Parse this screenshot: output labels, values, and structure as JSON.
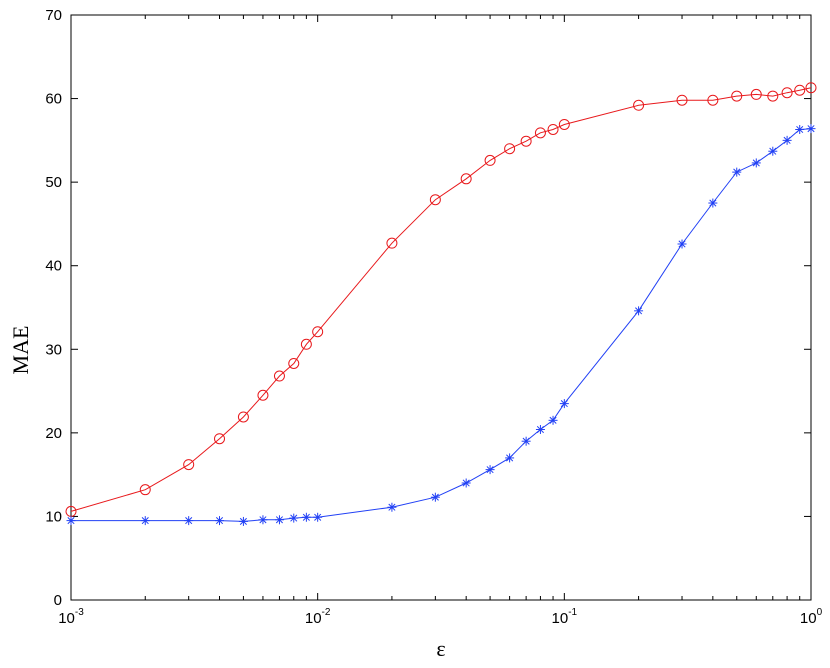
{
  "chart_data": {
    "type": "line",
    "xscale": "log",
    "xlabel": "ε",
    "ylabel": "MAE",
    "xlim": [
      0.001,
      1
    ],
    "ylim": [
      0,
      70
    ],
    "grid": false,
    "x_ticks": [
      {
        "value": 0.001,
        "base": "10",
        "exp": "-3"
      },
      {
        "value": 0.01,
        "base": "10",
        "exp": "-2"
      },
      {
        "value": 0.1,
        "base": "10",
        "exp": "-1"
      },
      {
        "value": 1,
        "base": "10",
        "exp": "0"
      }
    ],
    "y_ticks": [
      0,
      10,
      20,
      30,
      40,
      50,
      60,
      70
    ],
    "series": [
      {
        "color": "#e8191c",
        "marker": "circle",
        "x": [
          0.001,
          0.002,
          0.003,
          0.004,
          0.005,
          0.006,
          0.007,
          0.008,
          0.009,
          0.01,
          0.02,
          0.03,
          0.04,
          0.05,
          0.06,
          0.07,
          0.08,
          0.09,
          0.1,
          0.2,
          0.3,
          0.4,
          0.5,
          0.6,
          0.7,
          0.8,
          0.9,
          1.0
        ],
        "y": [
          10.6,
          13.2,
          16.2,
          19.3,
          21.9,
          24.5,
          26.8,
          28.3,
          30.6,
          32.1,
          42.7,
          47.9,
          50.4,
          52.6,
          54.0,
          54.9,
          55.9,
          56.3,
          56.9,
          59.2,
          59.8,
          59.8,
          60.3,
          60.5,
          60.3,
          60.7,
          61.0,
          61.3
        ]
      },
      {
        "color": "#2140f5",
        "marker": "star",
        "x": [
          0.001,
          0.002,
          0.003,
          0.004,
          0.005,
          0.006,
          0.007,
          0.008,
          0.009,
          0.01,
          0.02,
          0.03,
          0.04,
          0.05,
          0.06,
          0.07,
          0.08,
          0.09,
          0.1,
          0.2,
          0.3,
          0.4,
          0.5,
          0.6,
          0.7,
          0.8,
          0.9,
          1.0
        ],
        "y": [
          9.5,
          9.5,
          9.5,
          9.5,
          9.4,
          9.6,
          9.6,
          9.8,
          9.9,
          9.9,
          11.1,
          12.3,
          14.0,
          15.6,
          17.0,
          19.0,
          20.4,
          21.5,
          23.5,
          34.6,
          42.6,
          47.5,
          51.2,
          52.3,
          53.7,
          55.0,
          56.3,
          56.4
        ]
      }
    ]
  }
}
